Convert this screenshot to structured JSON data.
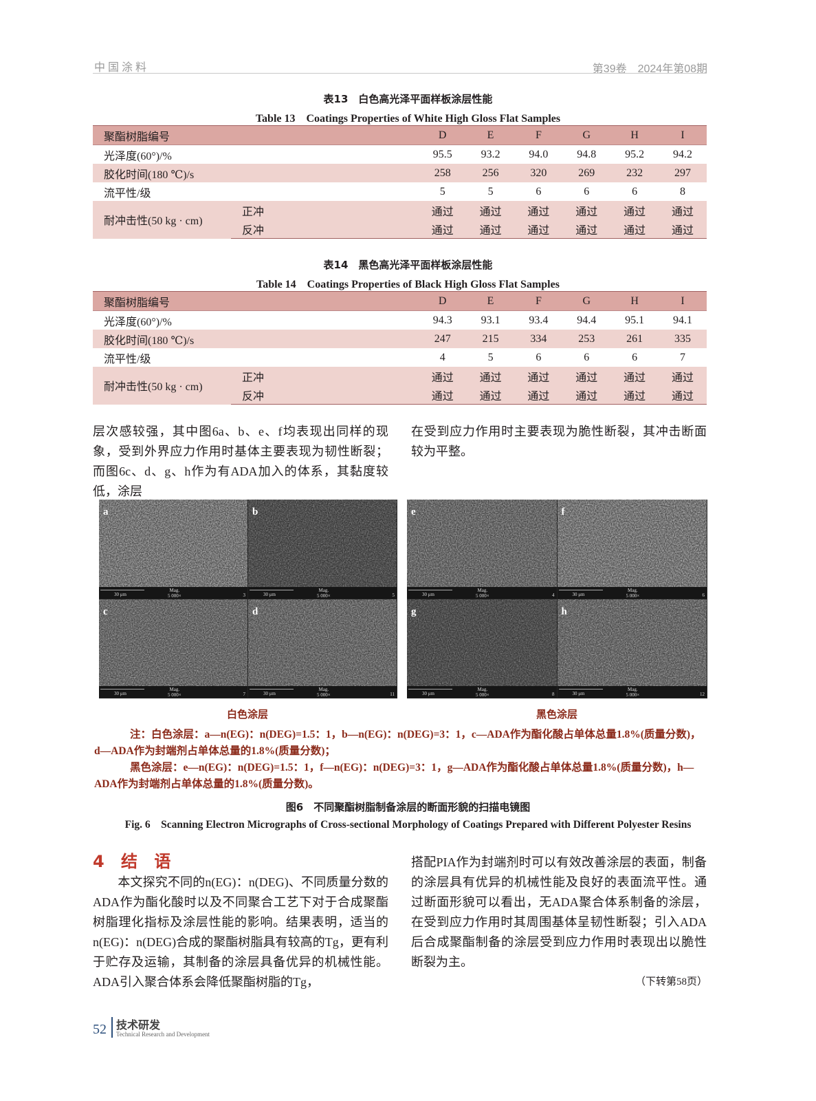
{
  "header": {
    "journal": "中国涂料",
    "issue": "第39卷　2024年第08期"
  },
  "table13": {
    "caption_cn": "表13　白色高光泽平面样板涂层性能",
    "caption_en": "Table 13　Coatings Properties of White High Gloss Flat Samples",
    "head_label": "聚酯树脂编号",
    "columns": [
      "D",
      "E",
      "F",
      "G",
      "H",
      "I"
    ],
    "rows": [
      {
        "label": "光泽度(60°)/%",
        "values": [
          "95.5",
          "93.2",
          "94.0",
          "94.8",
          "95.2",
          "94.2"
        ]
      },
      {
        "label": "胶化时间(180 ℃)/s",
        "values": [
          "258",
          "256",
          "320",
          "269",
          "232",
          "297"
        ]
      },
      {
        "label": "流平性/级",
        "values": [
          "5",
          "5",
          "6",
          "6",
          "6",
          "8"
        ]
      }
    ],
    "impact": {
      "label": "耐冲击性(50 kg · cm)",
      "sub": [
        {
          "label": "正冲",
          "values": [
            "通过",
            "通过",
            "通过",
            "通过",
            "通过",
            "通过"
          ]
        },
        {
          "label": "反冲",
          "values": [
            "通过",
            "通过",
            "通过",
            "通过",
            "通过",
            "通过"
          ]
        }
      ]
    }
  },
  "table14": {
    "caption_cn": "表14　黑色高光泽平面样板涂层性能",
    "caption_en": "Table 14　Coatings Properties of Black High Gloss Flat Samples",
    "head_label": "聚酯树脂编号",
    "columns": [
      "D",
      "E",
      "F",
      "G",
      "H",
      "I"
    ],
    "rows": [
      {
        "label": "光泽度(60°)/%",
        "values": [
          "94.3",
          "93.1",
          "93.4",
          "94.4",
          "95.1",
          "94.1"
        ]
      },
      {
        "label": "胶化时间(180 ℃)/s",
        "values": [
          "247",
          "215",
          "334",
          "253",
          "261",
          "335"
        ]
      },
      {
        "label": "流平性/级",
        "values": [
          "4",
          "5",
          "6",
          "6",
          "6",
          "7"
        ]
      }
    ],
    "impact": {
      "label": "耐冲击性(50 kg · cm)",
      "sub": [
        {
          "label": "正冲",
          "values": [
            "通过",
            "通过",
            "通过",
            "通过",
            "通过",
            "通过"
          ]
        },
        {
          "label": "反冲",
          "values": [
            "通过",
            "通过",
            "通过",
            "通过",
            "通过",
            "通过"
          ]
        }
      ]
    }
  },
  "body_top": {
    "left": "层次感较强，其中图6a、b、e、f均表现出同样的现象，受到外界应力作用时基体主要表现为韧性断裂；而图6c、d、g、h作为有ADA加入的体系，其黏度较低，涂层",
    "right": "在受到应力作用时主要表现为脆性断裂，其冲击断面较为平整。"
  },
  "figure": {
    "panels": [
      {
        "letter": "a",
        "num": "3",
        "tone": "light"
      },
      {
        "letter": "b",
        "num": "5",
        "tone": "dark"
      },
      {
        "letter": "c",
        "num": "7",
        "tone": "mid"
      },
      {
        "letter": "d",
        "num": "11",
        "tone": "mid"
      },
      {
        "letter": "e",
        "num": "4",
        "tone": "mid"
      },
      {
        "letter": "f",
        "num": "6",
        "tone": "light"
      },
      {
        "letter": "g",
        "num": "8",
        "tone": "dark"
      },
      {
        "letter": "h",
        "num": "12",
        "tone": "mid"
      }
    ],
    "scale": "30 μm",
    "mag_label": "Mag.",
    "mag_value": "5 000×",
    "label_white": "白色涂层",
    "label_black": "黑色涂层",
    "note1": "注：白色涂层：a—n(EG)：n(DEG)=1.5：1，b—n(EG)：n(DEG)=3：1，c—ADA作为酯化酸占单体总量1.8%(质量分数)，d—ADA作为封端剂占单体总量的1.8%(质量分数)；",
    "note2": "黑色涂层：e—n(EG)：n(DEG)=1.5：1，f—n(EG)：n(DEG)=3：1，g—ADA作为酯化酸占单体总量1.8%(质量分数)，h—ADA作为封端剂占单体总量的1.8%(质量分数)。",
    "caption_cn": "图6　不同聚酯树脂制备涂层的断面形貌的扫描电镜图",
    "caption_en": "Fig. 6　Scanning Electron Micrographs of Cross-sectional Morphology of Coatings Prepared with Different Polyester Resins"
  },
  "section": {
    "title": "4 结 语"
  },
  "conclusion": {
    "left": "　　本文探究不同的n(EG)：n(DEG)、不同质量分数的ADA作为酯化酸时以及不同聚合工艺下对于合成聚酯树脂理化指标及涂层性能的影响。结果表明，适当的n(EG)：n(DEG)合成的聚酯树脂具有较高的Tg，更有利于贮存及运输，其制备的涂层具备优异的机械性能。ADA引入聚合体系会降低聚酯树脂的Tg，",
    "right": "搭配PIA作为封端剂时可以有效改善涂层的表面，制备的涂层具有优异的机械性能及良好的表面流平性。通过断面形貌可以看出，无ADA聚合体系制备的涂层，在受到应力作用时其周围基体呈韧性断裂；引入ADA后合成聚酯制备的涂层受到应力作用时表现出以脆性断裂为主。",
    "continued": "（下转第58页）"
  },
  "footer": {
    "page": "52",
    "section_cn": "技术研发",
    "section_en": "Technical Research and Development"
  },
  "colors": {
    "table_head": "#dba7a2",
    "table_shade": "#efd3cf",
    "note_red": "#8b2a1a",
    "section_red": "#c0392b"
  }
}
